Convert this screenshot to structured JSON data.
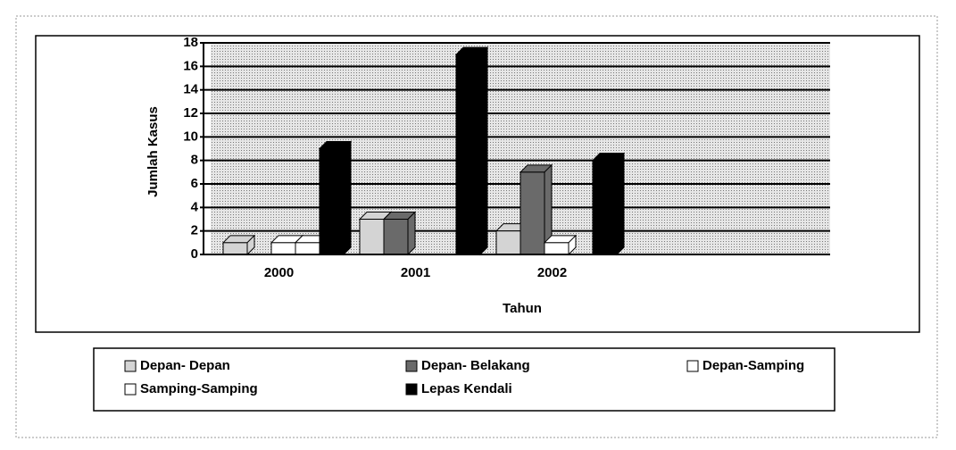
{
  "chart_data": {
    "type": "bar",
    "x_label": "Tahun",
    "y_label": "Jumlah Kasus",
    "categories": [
      "2000",
      "2001",
      "2002"
    ],
    "series": [
      {
        "name": "Depan- Depan",
        "color": "#d4d4d4",
        "values": [
          1,
          3,
          2
        ]
      },
      {
        "name": "Depan- Belakang",
        "color": "#6a6a6a",
        "values": [
          0,
          3,
          7
        ]
      },
      {
        "name": "Depan-Samping",
        "color": "#ffffff",
        "values": [
          1,
          0,
          1
        ]
      },
      {
        "name": "Samping-Samping",
        "color": "#ffffff",
        "values": [
          1,
          0,
          0
        ]
      },
      {
        "name": "Lepas Kendali",
        "color": "#000000",
        "values": [
          9,
          17,
          8
        ]
      }
    ],
    "ylim": [
      0,
      18
    ],
    "yticks": [
      0,
      2,
      4,
      6,
      8,
      10,
      12,
      14,
      16,
      18
    ],
    "grid": true
  }
}
